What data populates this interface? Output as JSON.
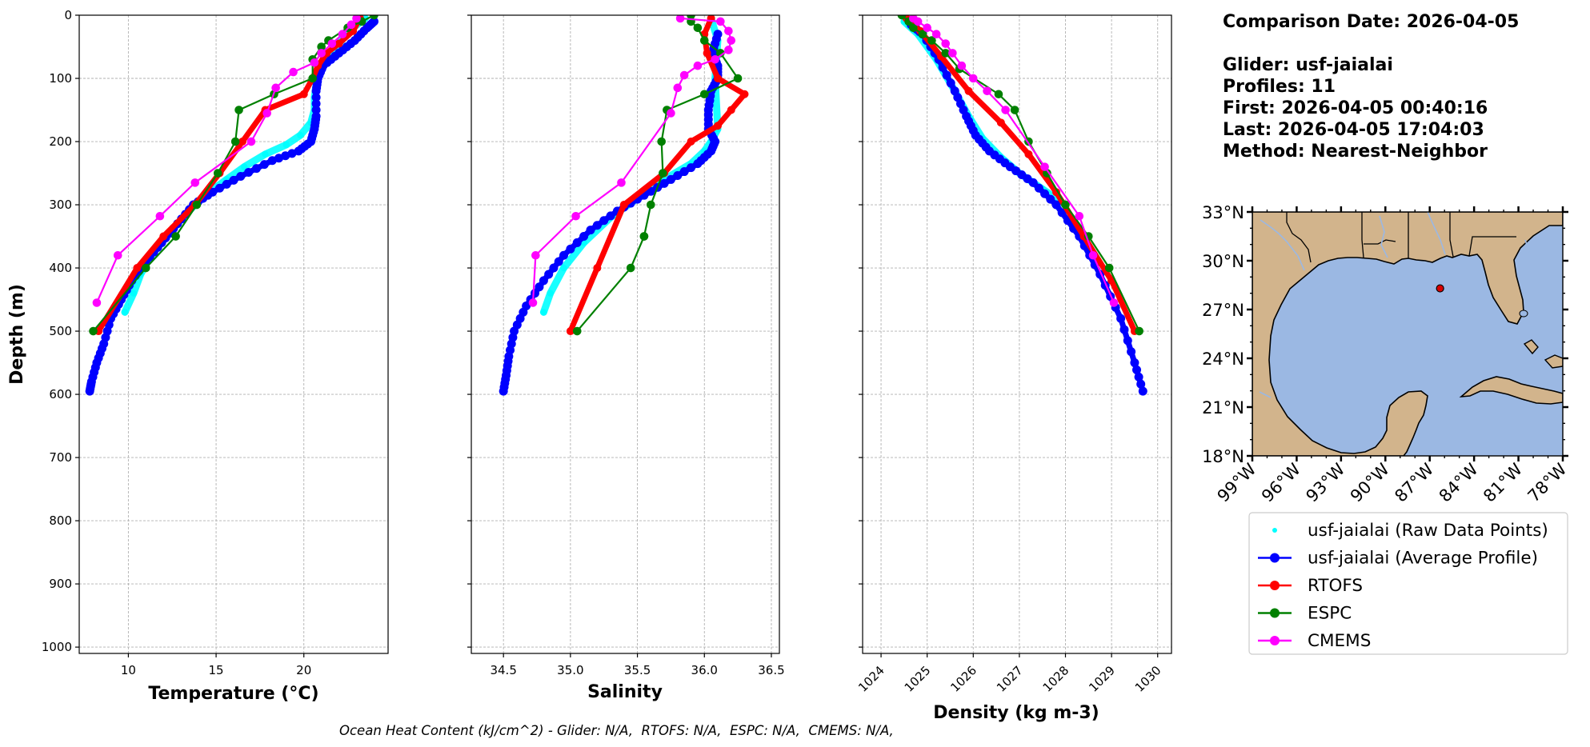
{
  "info": {
    "comparison_date": "Comparison Date: 2026-04-05",
    "glider": "Glider: usf-jaialai",
    "profiles": "Profiles: 11",
    "first": "First: 2026-04-05 00:40:16",
    "last": "Last: 2026-04-05 17:04:03",
    "method": "Method: Nearest-Neighbor"
  },
  "footer": "Ocean Heat Content (kJ/cm^2) - Glider: N/A,  RTOFS: N/A,  ESPC: N/A,  CMEMS: N/A,",
  "colors": {
    "raw": "#00ffff",
    "avg": "#0000ff",
    "rtofs": "#ff0000",
    "espc": "#008000",
    "cmems": "#ff00ff",
    "land": "#d2b48c",
    "ocean": "#9bb8e3"
  },
  "legend": [
    {
      "label": "usf-jaialai (Raw Data Points)",
      "key": "raw"
    },
    {
      "label": "usf-jaialai (Average Profile)",
      "key": "avg"
    },
    {
      "label": "RTOFS",
      "key": "rtofs"
    },
    {
      "label": "ESPC",
      "key": "espc"
    },
    {
      "label": "CMEMS",
      "key": "cmems"
    }
  ],
  "map": {
    "lat_ticks": [
      "33°N",
      "30°N",
      "27°N",
      "24°N",
      "21°N",
      "18°N"
    ],
    "lon_ticks": [
      "99°W",
      "96°W",
      "93°W",
      "90°W",
      "87°W",
      "84°W",
      "81°W",
      "78°W"
    ],
    "lat_range": [
      18,
      33
    ],
    "lon_range": [
      -99,
      -78
    ],
    "glider_position": {
      "lon": -86.3,
      "lat": 28.3
    }
  },
  "chart_data": [
    {
      "type": "line",
      "title": "",
      "xlabel": "Temperature (°C)",
      "ylabel": "Depth (m)",
      "xlim": [
        7.2,
        24.8
      ],
      "ylim": [
        1010,
        0
      ],
      "xticks": [
        10,
        15,
        20
      ],
      "yticks": [
        0,
        100,
        200,
        300,
        400,
        500,
        600,
        700,
        800,
        900,
        1000
      ],
      "grid": true,
      "series": [
        {
          "name": "usf-jaialai (Raw Data Points)",
          "key": "raw",
          "style": "raw",
          "x": [
            23.5,
            22.8,
            21.5,
            20.9,
            20.7,
            20.6,
            20.6,
            20.4,
            19.8,
            19.0,
            17.8,
            16.6,
            15.6,
            14.6,
            13.8,
            13.1,
            12.5,
            11.9,
            11.3,
            10.7,
            10.3,
            9.8
          ],
          "y": [
            5,
            20,
            60,
            90,
            110,
            130,
            150,
            170,
            190,
            205,
            220,
            240,
            260,
            280,
            300,
            320,
            340,
            360,
            380,
            410,
            440,
            470
          ]
        },
        {
          "name": "usf-jaialai (Average Profile)",
          "key": "avg",
          "style": "avg",
          "x": [
            24.0,
            23.6,
            22.9,
            22.0,
            21.1,
            20.8,
            20.7,
            20.7,
            20.6,
            20.4,
            19.7,
            18.2,
            16.4,
            14.8,
            13.7,
            12.8,
            11.9,
            11.0,
            10.2,
            9.6,
            9.0,
            8.6,
            8.2,
            7.9,
            7.8
          ],
          "y": [
            10,
            20,
            40,
            60,
            80,
            100,
            120,
            160,
            180,
            200,
            215,
            230,
            255,
            280,
            300,
            330,
            360,
            390,
            420,
            450,
            480,
            520,
            550,
            580,
            595
          ]
        },
        {
          "name": "RTOFS",
          "key": "rtofs",
          "style": "thick",
          "x": [
            23.2,
            22.8,
            22.0,
            21.3,
            20.8,
            20.5,
            20.0,
            17.8,
            16.5,
            15.2,
            13.8,
            12.0,
            10.5,
            8.3
          ],
          "y": [
            5,
            25,
            45,
            60,
            80,
            100,
            125,
            150,
            200,
            250,
            300,
            350,
            400,
            500
          ]
        },
        {
          "name": "ESPC",
          "key": "espc",
          "style": "marker",
          "x": [
            24.0,
            23.3,
            22.5,
            21.4,
            21.0,
            20.5,
            20.5,
            18.3,
            16.3,
            16.1,
            15.1,
            13.9,
            12.7,
            11.0,
            8.0
          ],
          "y": [
            0,
            10,
            20,
            40,
            50,
            70,
            100,
            125,
            150,
            200,
            250,
            300,
            350,
            400,
            500
          ]
        },
        {
          "name": "CMEMS",
          "key": "cmems",
          "style": "marker",
          "x": [
            23.0,
            22.7,
            22.2,
            21.6,
            21.0,
            20.6,
            19.4,
            18.4,
            17.9,
            17.0,
            13.8,
            11.8,
            9.4,
            8.2
          ],
          "y": [
            5,
            15,
            30,
            45,
            60,
            75,
            90,
            115,
            155,
            200,
            265,
            318,
            380,
            455
          ]
        }
      ]
    },
    {
      "type": "line",
      "title": "",
      "xlabel": "Salinity",
      "ylabel": "",
      "xlim": [
        34.26,
        36.56
      ],
      "ylim": [
        1010,
        0
      ],
      "xticks": [
        34.5,
        35.0,
        35.5,
        36.0,
        36.5
      ],
      "yticks": [
        0,
        100,
        200,
        300,
        400,
        500,
        600,
        700,
        800,
        900,
        1000
      ],
      "grid": true,
      "series": [
        {
          "name": "usf-jaialai (Raw Data Points)",
          "key": "raw",
          "style": "raw",
          "x": [
            36.05,
            36.1,
            36.08,
            36.1,
            36.05,
            36.0,
            35.9,
            35.7,
            35.5,
            35.3,
            35.1,
            34.95,
            34.85,
            34.8
          ],
          "y": [
            5,
            40,
            100,
            180,
            200,
            215,
            235,
            260,
            290,
            320,
            360,
            400,
            440,
            470
          ]
        },
        {
          "name": "usf-jaialai (Average Profile)",
          "key": "avg",
          "style": "avg",
          "x": [
            36.1,
            36.06,
            36.1,
            36.1,
            36.05,
            36.03,
            36.03,
            36.08,
            36.05,
            35.95,
            35.75,
            35.55,
            35.35,
            35.15,
            34.95,
            34.8,
            34.67,
            34.58,
            34.54,
            34.52,
            34.5
          ],
          "y": [
            30,
            60,
            80,
            100,
            120,
            150,
            180,
            200,
            215,
            235,
            260,
            285,
            310,
            340,
            380,
            420,
            460,
            500,
            540,
            570,
            595
          ]
        },
        {
          "name": "RTOFS",
          "key": "rtofs",
          "style": "thick",
          "x": [
            36.05,
            36.0,
            36.02,
            36.1,
            36.3,
            36.2,
            36.1,
            35.9,
            35.7,
            35.4,
            35.2,
            35.0
          ],
          "y": [
            5,
            30,
            60,
            100,
            125,
            150,
            175,
            200,
            250,
            300,
            400,
            500
          ]
        },
        {
          "name": "ESPC",
          "key": "espc",
          "style": "marker",
          "x": [
            35.9,
            35.9,
            35.95,
            36.0,
            36.12,
            36.25,
            36.0,
            35.72,
            35.68,
            35.69,
            35.6,
            35.55,
            35.55,
            35.45,
            35.05
          ],
          "y": [
            0,
            10,
            20,
            40,
            60,
            100,
            125,
            150,
            200,
            250,
            300,
            350,
            350,
            400,
            500
          ]
        },
        {
          "name": "CMEMS",
          "key": "cmems",
          "style": "marker",
          "x": [
            35.82,
            36.12,
            36.18,
            36.2,
            36.18,
            36.08,
            35.95,
            35.85,
            35.8,
            35.75,
            35.38,
            35.04,
            34.74,
            34.72
          ],
          "y": [
            5,
            10,
            25,
            40,
            55,
            70,
            80,
            95,
            115,
            155,
            265,
            318,
            380,
            455
          ]
        }
      ]
    },
    {
      "type": "line",
      "title": "",
      "xlabel": "Density (kg m-3)",
      "ylabel": "",
      "xlim": [
        1023.6,
        1030.3
      ],
      "ylim": [
        1010,
        0
      ],
      "xticks": [
        1024,
        1025,
        1026,
        1027,
        1028,
        1029,
        1030
      ],
      "yticks": [
        0,
        100,
        200,
        300,
        400,
        500,
        600,
        700,
        800,
        900,
        1000
      ],
      "grid": true,
      "series": [
        {
          "name": "usf-jaialai (Raw Data Points)",
          "key": "raw",
          "style": "raw",
          "x": [
            1024.5,
            1024.8,
            1025.2,
            1025.6,
            1025.9,
            1026.2,
            1026.6,
            1027.0,
            1027.5,
            1028.0
          ],
          "y": [
            10,
            30,
            70,
            120,
            160,
            195,
            225,
            250,
            275,
            300
          ]
        },
        {
          "name": "usf-jaialai (Average Profile)",
          "key": "avg",
          "style": "avg",
          "x": [
            1024.65,
            1024.9,
            1025.25,
            1025.6,
            1025.85,
            1026.05,
            1026.35,
            1026.8,
            1027.3,
            1027.8,
            1028.3,
            1028.75,
            1029.2,
            1029.5,
            1029.68
          ],
          "y": [
            15,
            30,
            70,
            120,
            160,
            190,
            215,
            240,
            265,
            300,
            350,
            410,
            480,
            550,
            595
          ]
        },
        {
          "name": "RTOFS",
          "key": "rtofs",
          "style": "thick",
          "x": [
            1024.55,
            1024.85,
            1025.3,
            1025.9,
            1026.6,
            1027.2,
            1027.8,
            1028.4,
            1029.0,
            1029.5
          ],
          "y": [
            5,
            25,
            65,
            120,
            170,
            220,
            280,
            350,
            420,
            500
          ]
        },
        {
          "name": "ESPC",
          "key": "espc",
          "style": "marker",
          "x": [
            1024.45,
            1024.6,
            1024.7,
            1024.9,
            1025.1,
            1025.4,
            1025.7,
            1026.55,
            1026.9,
            1027.2,
            1027.6,
            1028.0,
            1028.5,
            1028.95,
            1029.6
          ],
          "y": [
            0,
            10,
            20,
            30,
            40,
            60,
            85,
            125,
            150,
            200,
            250,
            300,
            350,
            400,
            500
          ]
        },
        {
          "name": "CMEMS",
          "key": "cmems",
          "style": "marker",
          "x": [
            1024.7,
            1024.8,
            1025.0,
            1025.2,
            1025.4,
            1025.55,
            1025.75,
            1026.0,
            1026.3,
            1026.7,
            1027.55,
            1028.3,
            1028.6,
            1029.05
          ],
          "y": [
            5,
            10,
            20,
            30,
            45,
            60,
            80,
            100,
            120,
            150,
            240,
            318,
            380,
            455
          ]
        }
      ]
    }
  ]
}
